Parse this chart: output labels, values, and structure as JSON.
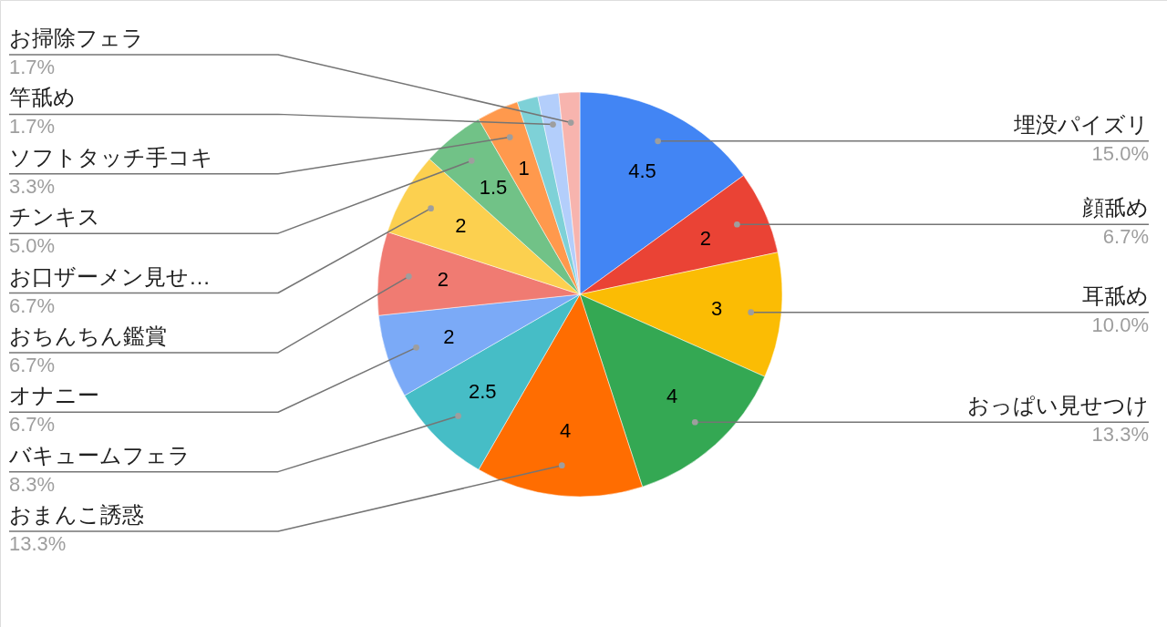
{
  "chart_data": {
    "type": "pie",
    "categories": [
      "埋没パイズリ",
      "顔舐め",
      "耳舐め",
      "おっぱい見せつけ",
      "おまんこ誘惑",
      "バキュームフェラ",
      "オナニー",
      "おちんちん鑑賞",
      "お口ザーメン見せ…",
      "チンキス",
      "ソフトタッチ手コキ",
      null,
      "竿舐め",
      "お掃除フェラ"
    ],
    "values": [
      4.5,
      2,
      3,
      4,
      4,
      2.5,
      2,
      2,
      2,
      1.5,
      1,
      0.5,
      0.5,
      0.5
    ],
    "colors": [
      "#4285f4",
      "#ea4335",
      "#fbbc04",
      "#34a853",
      "#ff6d01",
      "#46bdc6",
      "#7baaf7",
      "#f07b72",
      "#fcd04f",
      "#71c287",
      "#ff994d",
      "#7ed1d7",
      "#b3cefb",
      "#f7b4ae"
    ],
    "value_labels": [
      "4.5",
      "2",
      "3",
      "4",
      "4",
      "2.5",
      "2",
      "2",
      "2",
      "1.5",
      "1",
      null,
      null,
      null
    ],
    "annotations": [
      "15.0%",
      "6.7%",
      "10.0%",
      "13.3%",
      "13.3%",
      "8.3%",
      "6.7%",
      "6.7%",
      "6.7%",
      "5.0%",
      "3.3%",
      "1.7%",
      "1.7%"
    ]
  }
}
